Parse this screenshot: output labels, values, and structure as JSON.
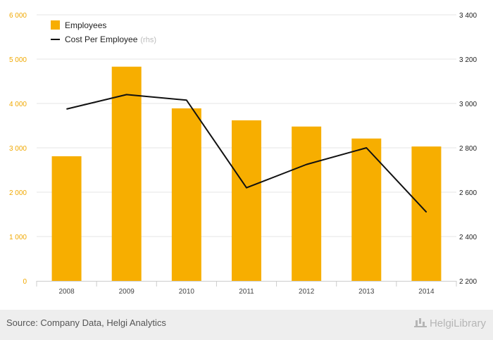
{
  "chart_data": {
    "type": "bar",
    "categories": [
      "2008",
      "2009",
      "2010",
      "2011",
      "2012",
      "2013",
      "2014"
    ],
    "series": [
      {
        "name": "Employees",
        "type": "bar",
        "axis": "left",
        "values": [
          2810,
          4830,
          3890,
          3620,
          3480,
          3210,
          3030
        ]
      },
      {
        "name": "Cost Per Employee",
        "type": "line",
        "axis": "right",
        "values": [
          2975,
          3040,
          3015,
          2620,
          2725,
          2800,
          2510
        ]
      }
    ],
    "legend_suffix": "(rhs)",
    "left_axis": {
      "min": 0,
      "max": 6000,
      "ticks": [
        {
          "v": 0,
          "label": "0"
        },
        {
          "v": 1000,
          "label": "1 000"
        },
        {
          "v": 2000,
          "label": "2 000"
        },
        {
          "v": 3000,
          "label": "3 000"
        },
        {
          "v": 4000,
          "label": "4 000"
        },
        {
          "v": 5000,
          "label": "5 000"
        },
        {
          "v": 6000,
          "label": "6 000"
        }
      ]
    },
    "right_axis": {
      "min": 2200,
      "max": 3400,
      "ticks": [
        {
          "v": 2200,
          "label": "2 200"
        },
        {
          "v": 2400,
          "label": "2 400"
        },
        {
          "v": 2600,
          "label": "2 600"
        },
        {
          "v": 2800,
          "label": "2 800"
        },
        {
          "v": 3000,
          "label": "3 000"
        },
        {
          "v": 3200,
          "label": "3 200"
        },
        {
          "v": 3400,
          "label": "3 400"
        }
      ]
    },
    "grid": true,
    "legend_position": "top-left",
    "colors": {
      "bar": "#f7ae00",
      "line": "#111111",
      "left_ticks": "#f0a800",
      "grid": "#e6e6e6"
    }
  },
  "footer": {
    "source": "Source: Company Data, Helgi Analytics",
    "brand": "HelgiLibrary"
  }
}
